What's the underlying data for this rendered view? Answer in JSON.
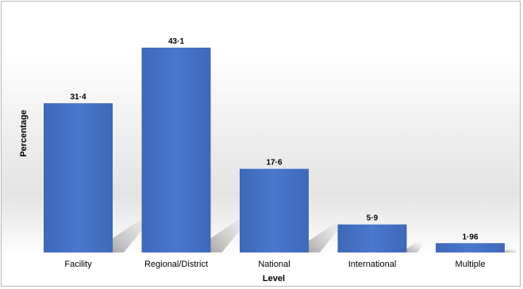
{
  "chart_data": {
    "type": "bar",
    "categories": [
      "Facility",
      "Regional/District",
      "National",
      "International",
      "Multiple"
    ],
    "values": [
      31.4,
      43.1,
      17.6,
      5.9,
      1.96
    ],
    "data_labels": [
      "31·4",
      "43·1",
      "17·6",
      "5·9",
      "1·96"
    ],
    "title": "",
    "xlabel": "Level",
    "ylabel": "Percentage",
    "ylim": [
      0,
      45
    ],
    "grid": false,
    "legend": "none",
    "bar_color": "#4472c4"
  }
}
